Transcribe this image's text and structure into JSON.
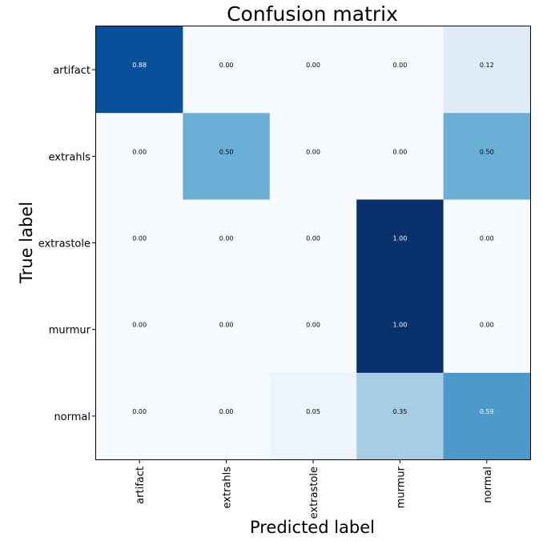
{
  "chart_data": {
    "type": "heatmap",
    "title": "Confusion matrix",
    "xlabel": "Predicted label",
    "ylabel": "True label",
    "x_categories": [
      "artifact",
      "extrahls",
      "extrastole",
      "murmur",
      "normal"
    ],
    "y_categories": [
      "artifact",
      "extrahls",
      "extrastole",
      "murmur",
      "normal"
    ],
    "values": [
      [
        0.88,
        0.0,
        0.0,
        0.0,
        0.12
      ],
      [
        0.0,
        0.5,
        0.0,
        0.0,
        0.5
      ],
      [
        0.0,
        0.0,
        0.0,
        1.0,
        0.0
      ],
      [
        0.0,
        0.0,
        0.0,
        1.0,
        0.0
      ],
      [
        0.0,
        0.0,
        0.05,
        0.35,
        0.59
      ]
    ],
    "value_labels": [
      [
        "0.88",
        "0.00",
        "0.00",
        "0.00",
        "0.12"
      ],
      [
        "0.00",
        "0.50",
        "0.00",
        "0.00",
        "0.50"
      ],
      [
        "0.00",
        "0.00",
        "0.00",
        "1.00",
        "0.00"
      ],
      [
        "0.00",
        "0.00",
        "0.00",
        "1.00",
        "0.00"
      ],
      [
        "0.00",
        "0.00",
        "0.05",
        "0.35",
        "0.59"
      ]
    ],
    "colormap": "Blues",
    "color_range": [
      0,
      1
    ],
    "grid": false
  }
}
